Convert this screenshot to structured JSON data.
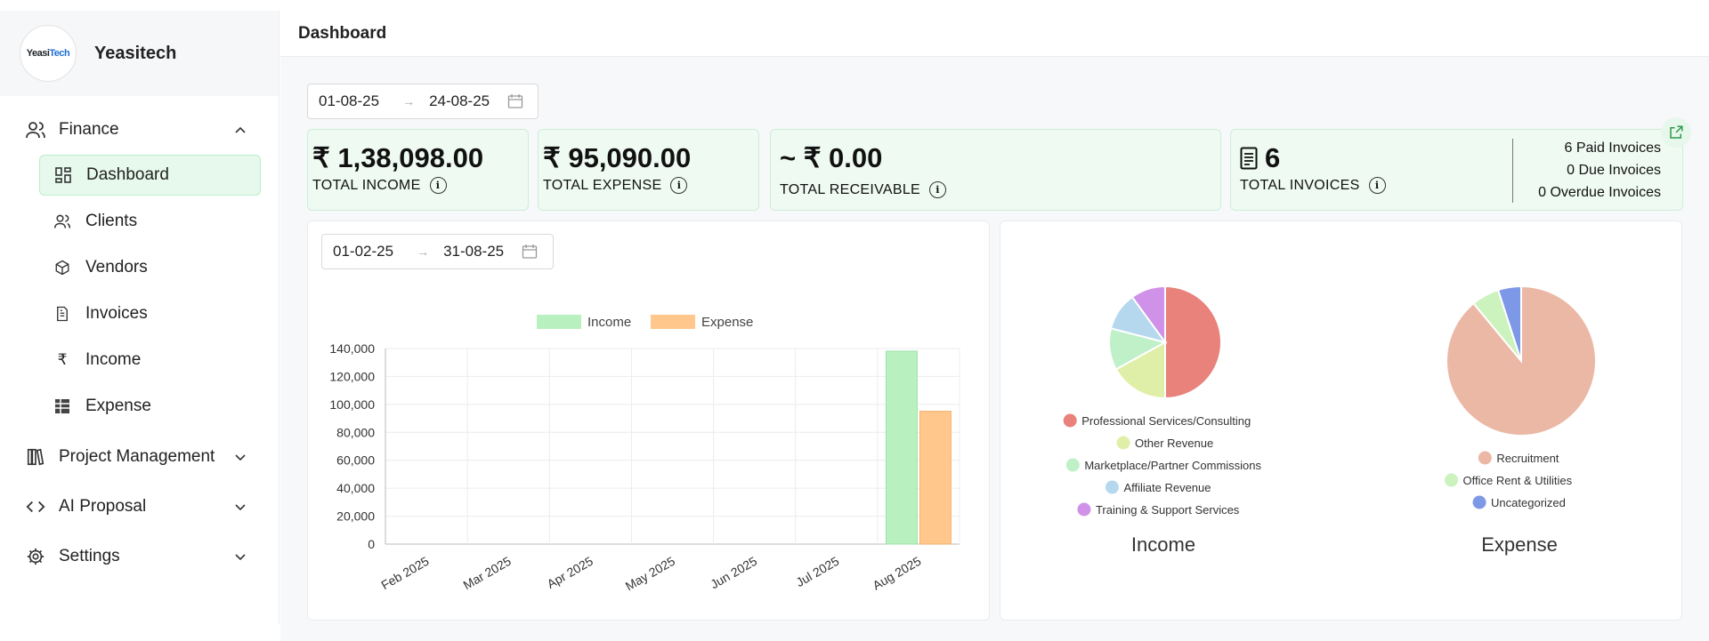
{
  "brand": {
    "logo_text_a": "Yeasi",
    "logo_text_b": "Tech",
    "name": "Yeasitech"
  },
  "sidebar": {
    "finance": "Finance",
    "items": [
      {
        "label": "Dashboard",
        "icon": "grid-icon"
      },
      {
        "label": "Clients",
        "icon": "users-icon"
      },
      {
        "label": "Vendors",
        "icon": "box-icon"
      },
      {
        "label": "Invoices",
        "icon": "file-icon"
      },
      {
        "label": "Income",
        "icon": "rupee-icon"
      },
      {
        "label": "Expense",
        "icon": "spreadsheet-icon"
      }
    ],
    "project_management": "Project Management",
    "ai_proposal": "AI Proposal",
    "settings": "Settings"
  },
  "header": {
    "title": "Dashboard"
  },
  "top_range": {
    "from": "01-08-25",
    "to": "24-08-25"
  },
  "cards": {
    "income": {
      "value": "₹ 1,38,098.00",
      "label": "TOTAL INCOME"
    },
    "expense": {
      "value": "₹ 95,090.00",
      "label": "TOTAL EXPENSE"
    },
    "receivable": {
      "value": "~ ₹ 0.00",
      "label": "TOTAL RECEIVABLE"
    },
    "invoices": {
      "value": "6",
      "label": "TOTAL INVOICES",
      "paid": "6 Paid Invoices",
      "due": "0 Due Invoices",
      "overdue": "0 Overdue Invoices"
    }
  },
  "chart_range": {
    "from": "01-02-25",
    "to": "31-08-25"
  },
  "colors": {
    "income": "#b8f0c0",
    "expense": "#ffc78c"
  },
  "chart_data": [
    {
      "type": "bar",
      "title": "",
      "categories": [
        "Feb 2025",
        "Mar 2025",
        "Apr 2025",
        "May 2025",
        "Jun 2025",
        "Jul 2025",
        "Aug 2025"
      ],
      "series": [
        {
          "name": "Income",
          "values": [
            0,
            0,
            0,
            0,
            0,
            0,
            138098
          ]
        },
        {
          "name": "Expense",
          "values": [
            0,
            0,
            0,
            0,
            0,
            0,
            95090
          ]
        }
      ],
      "yticks": [
        "0",
        "20,000",
        "40,000",
        "60,000",
        "80,000",
        "100,000",
        "120,000",
        "140,000"
      ],
      "ylim": [
        0,
        140000
      ],
      "legend": "top"
    },
    {
      "type": "pie",
      "title": "Income",
      "labels": [
        "Professional Services/Consulting",
        "Other Revenue",
        "Marketplace/Partner Commissions",
        "Affiliate Revenue",
        "Training & Support Services"
      ],
      "values": [
        50,
        17,
        12,
        11,
        10
      ],
      "colors": [
        "#e8827a",
        "#dfefa8",
        "#bff0c8",
        "#b5d8ee",
        "#cf92e8"
      ]
    },
    {
      "type": "pie",
      "title": "Expense",
      "labels": [
        "Recruitment",
        "Office Rent & Utilities",
        "Uncategorized"
      ],
      "values": [
        89,
        6,
        5
      ],
      "colors": [
        "#ebb8a6",
        "#ccf2bd",
        "#7d98e6"
      ]
    }
  ]
}
